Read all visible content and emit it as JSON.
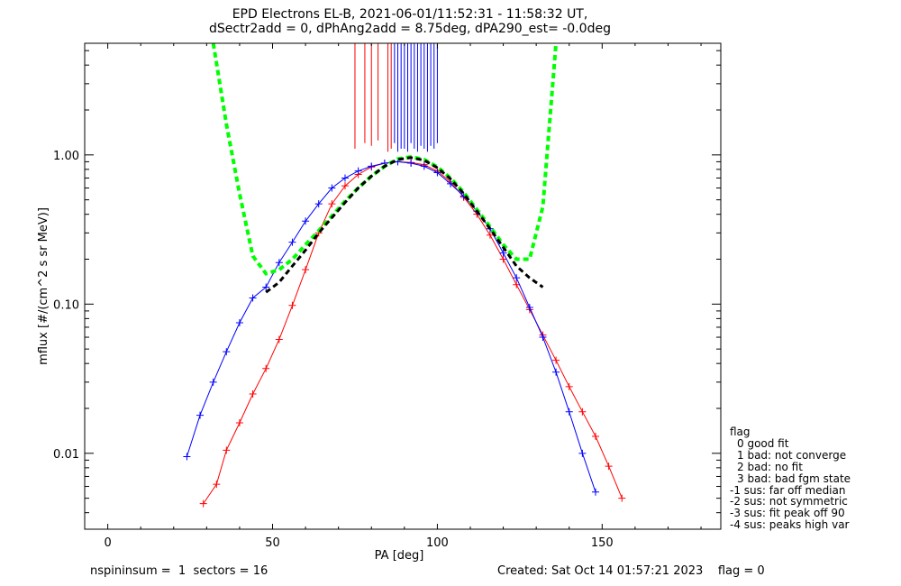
{
  "title_line1": "EPD Electrons EL-B, 2021-06-01/11:52:31 - 11:58:32 UT,",
  "title_line2": "dSectr2add = 0, dPhAng2add = 8.75deg, dPA290_est=  -0.0deg",
  "footer": {
    "left": "nspininsum =  1  sectors = 16",
    "right": "Created: Sat Oct 14 01:57:21 2023    flag = 0"
  },
  "legend": {
    "title": "flag",
    "items": [
      "0 good fit",
      "1 bad: not converge",
      "2 bad: no fit",
      "3 bad: bad fgm state",
      "-1 sus: far off median",
      "-2 sus: not symmetric",
      "-3 sus: fit peak off 90",
      "-4 sus: peaks high var"
    ]
  },
  "colors": {
    "red_series": "#ff0000",
    "blue_series": "#0000ff",
    "fit_curve": "#00ff00",
    "black_curve": "#000000"
  },
  "chart_data": {
    "type": "line",
    "xlabel": "PA [deg]",
    "ylabel": "mflux [#/(cm^2 s sr MeV)]",
    "xlim": [
      -7,
      186
    ],
    "ylim": [
      0.0031,
      5.6
    ],
    "yscale": "log",
    "x_ticks": [
      0,
      50,
      100,
      150
    ],
    "x_tick_labels": [
      "0",
      "50",
      "100",
      "150"
    ],
    "y_ticks": [
      0.01,
      0.1,
      1.0
    ],
    "y_tick_labels": [
      "0.01",
      "0.10",
      "1.00"
    ],
    "series": [
      {
        "color": "red",
        "x": [
          29,
          33,
          36,
          40,
          44,
          48,
          52,
          56,
          60,
          64,
          68,
          72,
          76,
          80,
          84,
          88,
          92,
          96,
          100,
          104,
          108,
          112,
          116,
          120,
          124,
          128,
          132,
          136,
          140,
          144,
          148,
          152,
          156
        ],
        "y": [
          0.0046,
          0.0062,
          0.0105,
          0.016,
          0.025,
          0.037,
          0.058,
          0.098,
          0.17,
          0.3,
          0.47,
          0.62,
          0.74,
          0.83,
          0.88,
          0.9,
          0.89,
          0.86,
          0.78,
          0.66,
          0.52,
          0.4,
          0.29,
          0.2,
          0.135,
          0.092,
          0.062,
          0.042,
          0.028,
          0.019,
          0.013,
          0.0082,
          0.005
        ]
      },
      {
        "color": "blue",
        "x": [
          24,
          28,
          32,
          36,
          40,
          44,
          48,
          52,
          56,
          60,
          64,
          68,
          72,
          76,
          80,
          84,
          88,
          92,
          96,
          100,
          104,
          108,
          112,
          116,
          120,
          124,
          128,
          132,
          136,
          140,
          144,
          148
        ],
        "y": [
          0.0095,
          0.018,
          0.03,
          0.048,
          0.075,
          0.11,
          0.13,
          0.19,
          0.26,
          0.36,
          0.47,
          0.6,
          0.7,
          0.78,
          0.84,
          0.88,
          0.9,
          0.88,
          0.84,
          0.76,
          0.64,
          0.53,
          0.42,
          0.32,
          0.22,
          0.15,
          0.095,
          0.06,
          0.035,
          0.019,
          0.01,
          0.0055
        ]
      },
      {
        "color": "green",
        "style": "dashed",
        "x": [
          32,
          36,
          40,
          44,
          48,
          52,
          56,
          60,
          64,
          68,
          72,
          76,
          80,
          84,
          88,
          92,
          96,
          100,
          104,
          108,
          112,
          116,
          120,
          124,
          128,
          132,
          136
        ],
        "y": [
          5.6,
          1.6,
          0.55,
          0.21,
          0.16,
          0.17,
          0.2,
          0.25,
          0.31,
          0.39,
          0.49,
          0.6,
          0.72,
          0.84,
          0.94,
          0.97,
          0.93,
          0.83,
          0.7,
          0.56,
          0.43,
          0.33,
          0.25,
          0.2,
          0.2,
          0.45,
          5.6
        ]
      },
      {
        "color": "black",
        "style": "dashed",
        "x": [
          48,
          52,
          56,
          60,
          64,
          68,
          72,
          76,
          80,
          84,
          88,
          92,
          96,
          100,
          104,
          108,
          112,
          116,
          120,
          124,
          128,
          132
        ],
        "y": [
          0.12,
          0.14,
          0.18,
          0.23,
          0.3,
          0.38,
          0.48,
          0.6,
          0.72,
          0.84,
          0.93,
          0.96,
          0.92,
          0.82,
          0.69,
          0.55,
          0.42,
          0.32,
          0.24,
          0.18,
          0.15,
          0.13
        ]
      }
    ],
    "vertical_lines": {
      "x": [
        75,
        78,
        80,
        82,
        85,
        86,
        87,
        88,
        89,
        90,
        91,
        92,
        93,
        94,
        95,
        96,
        97,
        98,
        99,
        100
      ],
      "from_y": [
        1.1,
        1.2,
        1.15,
        1.25,
        1.05,
        1.1,
        1.2,
        1.05,
        1.1,
        1.1,
        1.05,
        1.2,
        1.1,
        1.05,
        1.15,
        1.1,
        1.05,
        1.15,
        1.1,
        1.2
      ]
    }
  }
}
